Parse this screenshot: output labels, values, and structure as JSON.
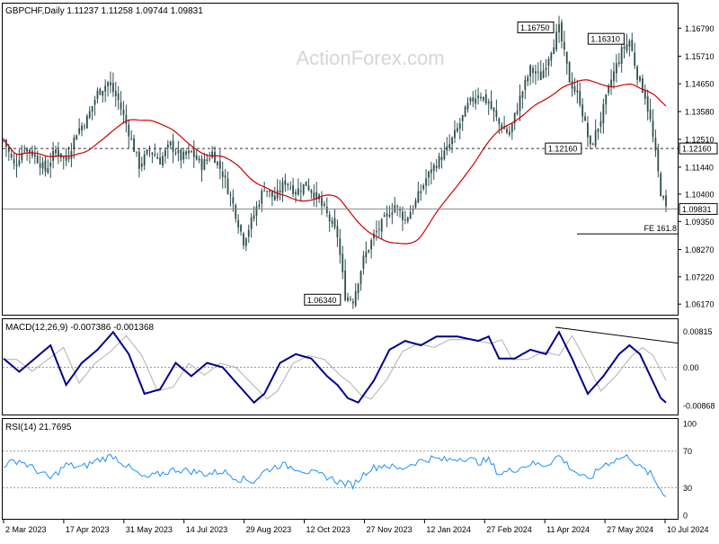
{
  "chart_data": {
    "type": "candlestick",
    "symbol_line": "GBPCHF,Daily  1.11237 1.11258 1.09744 1.09831",
    "watermark": "ActionForex.com",
    "price_axis": {
      "ticks": [
        "1.16790",
        "1.15710",
        "1.14650",
        "1.13580",
        "1.12510",
        "1.11440",
        "1.10400",
        "1.09350",
        "1.08270",
        "1.07220",
        "1.06170"
      ],
      "range": [
        1.059,
        1.1725
      ]
    },
    "dates": [
      "2 Mar 2023",
      "17 Apr 2023",
      "31 May 2023",
      "14 Jul 2023",
      "29 Aug 2023",
      "12 Oct 2023",
      "27 Nov 2023",
      "12 Jan 2024",
      "27 Feb 2024",
      "11 Apr 2024",
      "27 May 2024",
      "10 Jul 2024"
    ],
    "price_path": [
      [
        0,
        1.125
      ],
      [
        4,
        1.115
      ],
      [
        8,
        1.122
      ],
      [
        12,
        1.119
      ],
      [
        16,
        1.113
      ],
      [
        20,
        1.121
      ],
      [
        24,
        1.117
      ],
      [
        28,
        1.128
      ],
      [
        32,
        1.133
      ],
      [
        36,
        1.143
      ],
      [
        40,
        1.147
      ],
      [
        44,
        1.14
      ],
      [
        48,
        1.128
      ],
      [
        52,
        1.115
      ],
      [
        56,
        1.121
      ],
      [
        60,
        1.117
      ],
      [
        64,
        1.123
      ],
      [
        68,
        1.118
      ],
      [
        72,
        1.12
      ],
      [
        76,
        1.115
      ],
      [
        80,
        1.12
      ],
      [
        84,
        1.112
      ],
      [
        88,
        1.1
      ],
      [
        92,
        1.086
      ],
      [
        96,
        1.096
      ],
      [
        100,
        1.107
      ],
      [
        104,
        1.102
      ],
      [
        108,
        1.109
      ],
      [
        112,
        1.105
      ],
      [
        116,
        1.108
      ],
      [
        120,
        1.103
      ],
      [
        124,
        1.096
      ],
      [
        128,
        1.088
      ],
      [
        131,
        1.065
      ],
      [
        134,
        1.0634
      ],
      [
        138,
        1.079
      ],
      [
        142,
        1.088
      ],
      [
        146,
        1.094
      ],
      [
        150,
        1.1
      ],
      [
        154,
        1.094
      ],
      [
        158,
        1.101
      ],
      [
        162,
        1.11
      ],
      [
        166,
        1.116
      ],
      [
        170,
        1.121
      ],
      [
        174,
        1.129
      ],
      [
        178,
        1.138
      ],
      [
        182,
        1.143
      ],
      [
        186,
        1.139
      ],
      [
        190,
        1.131
      ],
      [
        194,
        1.127
      ],
      [
        198,
        1.141
      ],
      [
        202,
        1.152
      ],
      [
        206,
        1.149
      ],
      [
        210,
        1.16
      ],
      [
        213,
        1.1675
      ],
      [
        217,
        1.148
      ],
      [
        221,
        1.14
      ],
      [
        225,
        1.1216
      ],
      [
        229,
        1.133
      ],
      [
        233,
        1.148
      ],
      [
        237,
        1.159
      ],
      [
        240,
        1.1631
      ],
      [
        243,
        1.15
      ],
      [
        246,
        1.142
      ],
      [
        248,
        1.132
      ],
      [
        250,
        1.119
      ],
      [
        252,
        1.105
      ],
      [
        254,
        1.0983
      ]
    ],
    "price_labels": [
      {
        "text": "1.16750",
        "bar": 213,
        "price": 1.1675,
        "pos": "left-top"
      },
      {
        "text": "1.16310",
        "bar": 240,
        "price": 1.1631,
        "pos": "left-top"
      },
      {
        "text": "1.12160",
        "bar": 225,
        "price": 1.1216,
        "pos": "left"
      },
      {
        "text": "1.06340",
        "bar": 134,
        "price": 1.0634,
        "pos": "left-bottom"
      }
    ],
    "h_levels": [
      {
        "price": 1.1216,
        "style": "dotted",
        "tag": "1.12160"
      },
      {
        "price": 1.09831,
        "style": "solid",
        "tag": "1.09831"
      }
    ],
    "fe_label": {
      "text": "FE 161.8",
      "price": 1.0915
    },
    "macd": {
      "label": "MACD(12,26,9) -0.007386 -0.001368",
      "ticks": [
        "0.00815",
        "0.00",
        "-0.00868"
      ],
      "range": [
        -0.0097,
        0.0095
      ],
      "path": [
        [
          0,
          0.002
        ],
        [
          6,
          -0.001
        ],
        [
          12,
          0.002
        ],
        [
          18,
          0.005
        ],
        [
          24,
          -0.004
        ],
        [
          30,
          0.001
        ],
        [
          36,
          0.004
        ],
        [
          42,
          0.008
        ],
        [
          48,
          0.003
        ],
        [
          54,
          -0.006
        ],
        [
          60,
          -0.005
        ],
        [
          66,
          0.001
        ],
        [
          72,
          -0.002
        ],
        [
          78,
          0.001
        ],
        [
          84,
          0.0
        ],
        [
          90,
          -0.004
        ],
        [
          96,
          -0.008
        ],
        [
          100,
          -0.006
        ],
        [
          106,
          0.001
        ],
        [
          112,
          0.003
        ],
        [
          118,
          0.002
        ],
        [
          124,
          -0.002
        ],
        [
          128,
          -0.004
        ],
        [
          132,
          -0.007
        ],
        [
          136,
          -0.008
        ],
        [
          142,
          -0.003
        ],
        [
          148,
          0.004
        ],
        [
          154,
          0.006
        ],
        [
          160,
          0.005
        ],
        [
          166,
          0.007
        ],
        [
          174,
          0.007
        ],
        [
          182,
          0.006
        ],
        [
          186,
          0.007
        ],
        [
          190,
          0.002
        ],
        [
          196,
          0.002
        ],
        [
          202,
          0.004
        ],
        [
          208,
          0.003
        ],
        [
          213,
          0.008
        ],
        [
          218,
          0.002
        ],
        [
          224,
          -0.006
        ],
        [
          230,
          -0.002
        ],
        [
          236,
          0.003
        ],
        [
          240,
          0.005
        ],
        [
          244,
          0.003
        ],
        [
          248,
          -0.002
        ],
        [
          252,
          -0.007
        ],
        [
          254,
          -0.008
        ]
      ]
    },
    "rsi": {
      "label": "RSI(14) 21.7695",
      "ticks": [
        "100",
        "70",
        "30",
        "0"
      ],
      "levels": [
        70,
        30
      ],
      "path": [
        [
          0,
          55
        ],
        [
          6,
          60
        ],
        [
          12,
          50
        ],
        [
          18,
          40
        ],
        [
          24,
          55
        ],
        [
          30,
          52
        ],
        [
          36,
          60
        ],
        [
          42,
          65
        ],
        [
          48,
          52
        ],
        [
          54,
          40
        ],
        [
          60,
          45
        ],
        [
          66,
          50
        ],
        [
          72,
          48
        ],
        [
          78,
          45
        ],
        [
          84,
          48
        ],
        [
          90,
          40
        ],
        [
          96,
          37
        ],
        [
          100,
          48
        ],
        [
          106,
          55
        ],
        [
          112,
          52
        ],
        [
          118,
          46
        ],
        [
          124,
          42
        ],
        [
          130,
          35
        ],
        [
          134,
          33
        ],
        [
          140,
          50
        ],
        [
          146,
          55
        ],
        [
          152,
          50
        ],
        [
          158,
          58
        ],
        [
          164,
          62
        ],
        [
          170,
          60
        ],
        [
          176,
          63
        ],
        [
          182,
          58
        ],
        [
          186,
          60
        ],
        [
          190,
          45
        ],
        [
          196,
          50
        ],
        [
          202,
          56
        ],
        [
          208,
          55
        ],
        [
          213,
          65
        ],
        [
          218,
          50
        ],
        [
          224,
          38
        ],
        [
          230,
          55
        ],
        [
          236,
          62
        ],
        [
          240,
          64
        ],
        [
          244,
          52
        ],
        [
          248,
          45
        ],
        [
          252,
          28
        ],
        [
          254,
          22
        ]
      ]
    }
  }
}
